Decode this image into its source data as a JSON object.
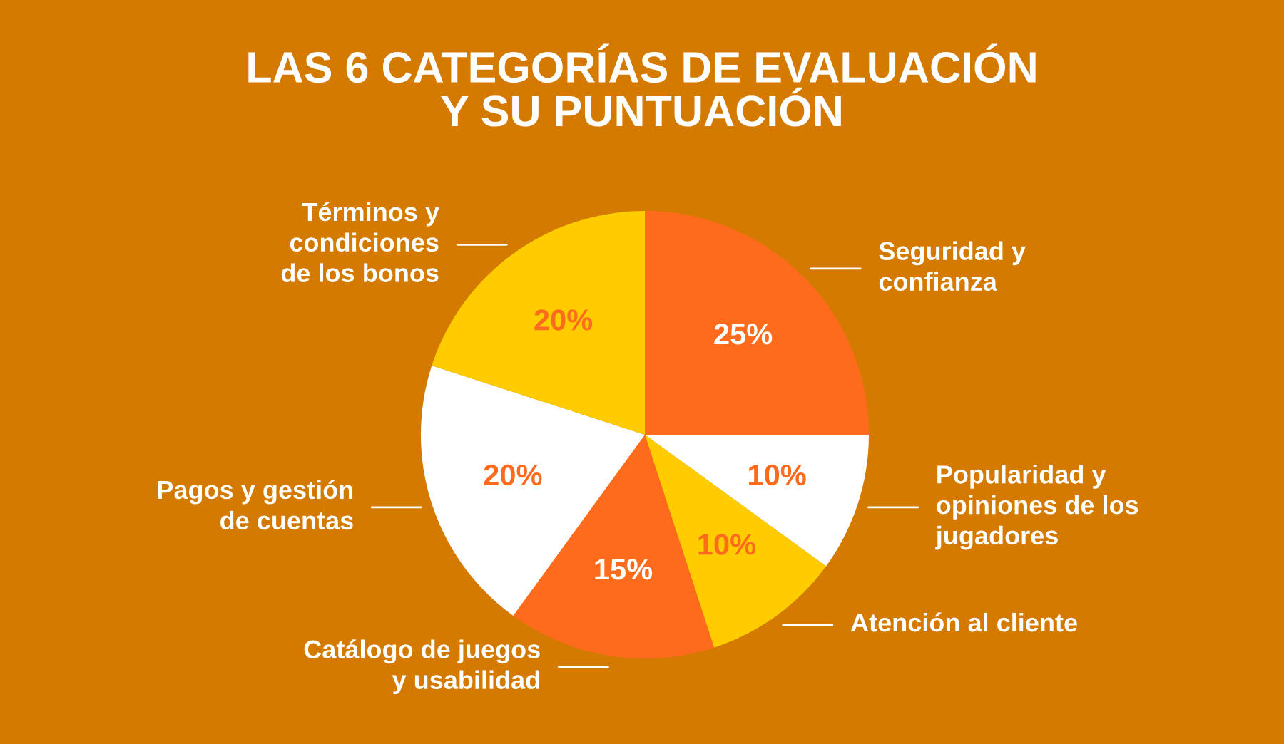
{
  "chart_data": {
    "type": "pie",
    "title": "LAS 6 CATEGORÍAS DE EVALUACIÓN\nY SU PUNTUACIÓN",
    "categories": [
      "Seguridad y\nconfianza",
      "Popularidad y\nopiniones de los\njugadores",
      "Atención al cliente",
      "Catálogo de juegos\ny usabilidad",
      "Pagos y gestión\nde cuentas",
      "Términos y\ncondiciones\nde los bonos"
    ],
    "values": [
      25,
      10,
      10,
      15,
      20,
      20
    ],
    "colors": [
      "#ff6b1c",
      "#ffffff",
      "#ffcc00",
      "#ff6b1c",
      "#ffffff",
      "#ffcc00"
    ],
    "value_labels": [
      "25%",
      "10%",
      "10%",
      "15%",
      "20%",
      "20%"
    ],
    "legend": false
  }
}
